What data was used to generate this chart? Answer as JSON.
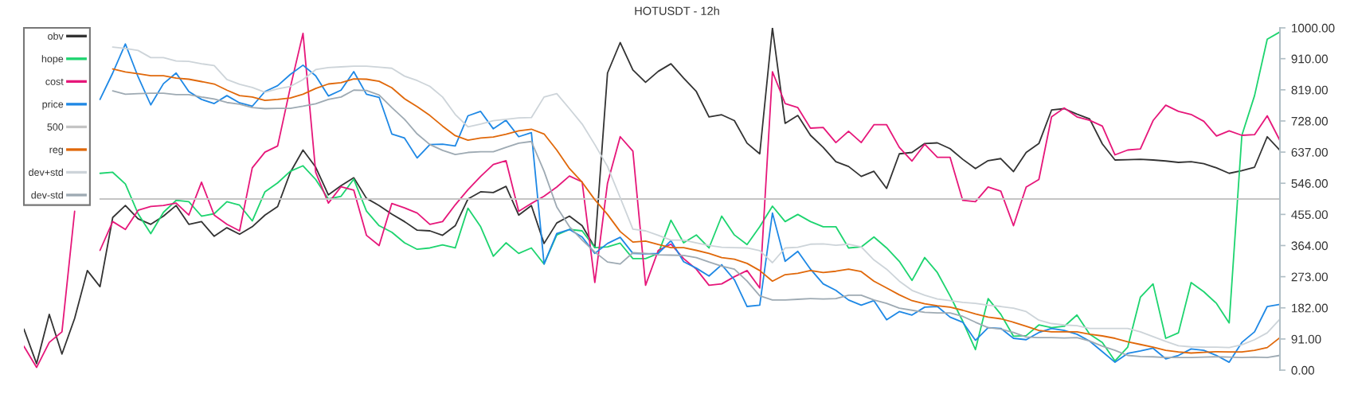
{
  "chart_data": {
    "type": "line",
    "title": "HOTUSDT - 12h",
    "categories": [
      null,
      null,
      null,
      null,
      null,
      null,
      null,
      null,
      null,
      null,
      null,
      null,
      null,
      null,
      null,
      null,
      null,
      null,
      null,
      null,
      null,
      null,
      null,
      null,
      null,
      null,
      null,
      null,
      null,
      null,
      null,
      null,
      null,
      null,
      null,
      null,
      null,
      null,
      null,
      null,
      null,
      null,
      null,
      null,
      null,
      null,
      null,
      null,
      null,
      null,
      null,
      null,
      null,
      null,
      null,
      null,
      null,
      null,
      null,
      null,
      null,
      null,
      null,
      null,
      null,
      null,
      null,
      null,
      null,
      null,
      null,
      null,
      null,
      null,
      null,
      null,
      null,
      null,
      null,
      null,
      null,
      null,
      null,
      null,
      null,
      null,
      null,
      null,
      null,
      null,
      null,
      null,
      null,
      null,
      null,
      null,
      null,
      null,
      null,
      null
    ],
    "series": [
      {
        "name": "obv",
        "color": "#333333",
        "values": [
          120,
          19,
          163,
          47,
          151,
          291,
          244,
          446,
          481,
          442,
          426,
          450,
          481,
          426,
          434,
          391,
          416,
          397,
          419,
          453,
          478,
          578,
          643,
          593,
          512,
          539,
          562,
          502,
          481,
          456,
          434,
          409,
          407,
          394,
          422,
          500,
          521,
          519,
          537,
          453,
          481,
          370,
          430,
          450,
          422,
          358,
          868,
          957,
          877,
          841,
          873,
          895,
          853,
          814,
          740,
          746,
          729,
          663,
          632,
          1000,
          721,
          744,
          686,
          651,
          609,
          595,
          566,
          581,
          531,
          632,
          636,
          662,
          664,
          647,
          616,
          589,
          612,
          618,
          580,
          636,
          662,
          760,
          764,
          748,
          734,
          661,
          614,
          615,
          616,
          614,
          611,
          607,
          609,
          603,
          591,
          575,
          583,
          593,
          682,
          642
        ]
      },
      {
        "name": "hope",
        "color": "#1dd46f",
        "values": [
          null,
          null,
          null,
          null,
          null,
          null,
          575,
          578,
          544,
          457,
          399,
          461,
          496,
          492,
          450,
          457,
          492,
          482,
          436,
          521,
          547,
          581,
          597,
          557,
          500,
          508,
          558,
          465,
          422,
          403,
          372,
          353,
          357,
          366,
          357,
          473,
          419,
          333,
          372,
          341,
          357,
          310,
          395,
          411,
          407,
          358,
          360,
          371,
          326,
          326,
          341,
          438,
          372,
          395,
          357,
          450,
          395,
          367,
          419,
          479,
          434,
          455,
          434,
          419,
          419,
          357,
          360,
          389,
          357,
          318,
          262,
          329,
          285,
          217,
          143,
          60,
          209,
          163,
          99,
          101,
          132,
          124,
          128,
          161,
          105,
          81,
          27,
          67,
          213,
          252,
          93,
          109,
          256,
          229,
          195,
          138,
          686,
          802,
          967,
          988
        ]
      },
      {
        "name": "cost",
        "color": "#e6177a",
        "values": [
          70,
          8,
          81,
          112,
          464,
          null,
          350,
          434,
          411,
          467,
          478,
          481,
          488,
          453,
          549,
          453,
          426,
          407,
          591,
          637,
          655,
          826,
          984,
          578,
          488,
          536,
          526,
          394,
          364,
          487,
          474,
          459,
          426,
          434,
          483,
          527,
          566,
          601,
          612,
          464,
          487,
          508,
          535,
          567,
          550,
          256,
          546,
          682,
          640,
          248,
          350,
          368,
          326,
          295,
          248,
          252,
          273,
          291,
          240,
          872,
          779,
          767,
          707,
          709,
          665,
          698,
          665,
          717,
          717,
          651,
          611,
          660,
          622,
          622,
          496,
          492,
          535,
          523,
          422,
          535,
          557,
          740,
          766,
          740,
          730,
          713,
          629,
          643,
          646,
          729,
          774,
          756,
          747,
          727,
          684,
          699,
          686,
          688,
          743,
          671
        ]
      },
      {
        "name": "price",
        "color": "#1e88e5",
        "values": [
          null,
          null,
          null,
          null,
          null,
          null,
          791,
          868,
          953,
          857,
          775,
          837,
          868,
          814,
          791,
          779,
          802,
          781,
          771,
          814,
          831,
          864,
          891,
          860,
          801,
          818,
          872,
          806,
          797,
          690,
          678,
          620,
          659,
          660,
          655,
          743,
          756,
          705,
          730,
          682,
          694,
          310,
          399,
          411,
          389,
          341,
          370,
          388,
          341,
          340,
          341,
          378,
          317,
          298,
          275,
          308,
          264,
          186,
          190,
          459,
          318,
          347,
          295,
          252,
          233,
          205,
          190,
          203,
          147,
          171,
          161,
          184,
          186,
          155,
          140,
          87,
          124,
          122,
          93,
          89,
          110,
          122,
          116,
          105,
          85,
          54,
          23,
          49,
          56,
          64,
          33,
          43,
          62,
          58,
          43,
          23,
          81,
          112,
          186,
          192
        ]
      },
      {
        "name": "500",
        "color": "#c4c4c4",
        "values": [
          null,
          null,
          null,
          null,
          null,
          null,
          500,
          500,
          500,
          500,
          500,
          500,
          500,
          500,
          500,
          500,
          500,
          500,
          500,
          500,
          500,
          500,
          500,
          500,
          500,
          500,
          500,
          500,
          500,
          500,
          500,
          500,
          500,
          500,
          500,
          500,
          500,
          500,
          500,
          500,
          500,
          500,
          500,
          500,
          500,
          500,
          500,
          500,
          500,
          500,
          500,
          500,
          500,
          500,
          500,
          500,
          500,
          500,
          500,
          500,
          500,
          500,
          500,
          500,
          500,
          500,
          500,
          500,
          500,
          500,
          500,
          500,
          500,
          500,
          500,
          500,
          500,
          500,
          500,
          500,
          500,
          500,
          500,
          500,
          500,
          500,
          500,
          500,
          500,
          500,
          500,
          500,
          500,
          500,
          500,
          500,
          500,
          500,
          500,
          500
        ]
      },
      {
        "name": "reg",
        "color": "#e0680a",
        "values": [
          null,
          null,
          null,
          null,
          null,
          null,
          null,
          880,
          871,
          866,
          860,
          860,
          853,
          850,
          843,
          836,
          818,
          802,
          798,
          788,
          791,
          795,
          806,
          823,
          836,
          840,
          851,
          850,
          844,
          825,
          793,
          770,
          744,
          713,
          685,
          672,
          678,
          681,
          689,
          699,
          704,
          690,
          643,
          589,
          549,
          498,
          455,
          405,
          374,
          377,
          367,
          358,
          358,
          350,
          341,
          329,
          324,
          312,
          291,
          260,
          279,
          283,
          291,
          285,
          289,
          295,
          288,
          260,
          240,
          220,
          203,
          194,
          188,
          184,
          175,
          164,
          155,
          150,
          140,
          128,
          116,
          112,
          112,
          112,
          105,
          100,
          93,
          83,
          75,
          67,
          58,
          53,
          50,
          52,
          54,
          53,
          53,
          58,
          66,
          95
        ]
      },
      {
        "name": "dev+std",
        "color": "#cdd4d9",
        "values": [
          null,
          null,
          null,
          null,
          null,
          null,
          null,
          944,
          940,
          934,
          913,
          913,
          903,
          902,
          895,
          890,
          849,
          835,
          826,
          812,
          822,
          829,
          849,
          878,
          884,
          886,
          888,
          888,
          885,
          882,
          859,
          846,
          829,
          798,
          747,
          711,
          719,
          729,
          733,
          737,
          738,
          798,
          808,
          764,
          719,
          659,
          595,
          504,
          412,
          407,
          394,
          380,
          380,
          372,
          364,
          359,
          358,
          357,
          349,
          314,
          357,
          359,
          368,
          369,
          365,
          368,
          360,
          322,
          295,
          260,
          233,
          219,
          208,
          203,
          198,
          195,
          190,
          186,
          181,
          171,
          146,
          136,
          132,
          130,
          122,
          122,
          122,
          122,
          112,
          98,
          84,
          71,
          68,
          67,
          67,
          66,
          74,
          89,
          109,
          149
        ]
      },
      {
        "name": "dev-std",
        "color": "#9eaab3",
        "values": [
          null,
          null,
          null,
          null,
          null,
          null,
          null,
          816,
          806,
          808,
          809,
          809,
          805,
          805,
          798,
          792,
          782,
          777,
          767,
          764,
          765,
          765,
          771,
          778,
          791,
          798,
          818,
          817,
          804,
          767,
          733,
          690,
          659,
          642,
          630,
          636,
          638,
          638,
          651,
          663,
          668,
          581,
          477,
          419,
          380,
          345,
          316,
          310,
          343,
          341,
          337,
          336,
          335,
          329,
          316,
          304,
          295,
          260,
          217,
          205,
          205,
          207,
          209,
          208,
          209,
          219,
          219,
          205,
          195,
          181,
          175,
          169,
          167,
          167,
          157,
          140,
          124,
          120,
          110,
          97,
          95,
          95,
          94,
          95,
          85,
          70,
          58,
          43,
          40,
          39,
          37,
          37,
          37,
          38,
          39,
          38,
          37,
          38,
          37,
          43
        ]
      }
    ],
    "ylim": [
      0,
      1000
    ],
    "yticks": [
      {
        "value": 0,
        "label": "0.00"
      },
      {
        "value": 91,
        "label": "91.00"
      },
      {
        "value": 182,
        "label": "182.00"
      },
      {
        "value": 273,
        "label": "273.00"
      },
      {
        "value": 364,
        "label": "364.00"
      },
      {
        "value": 455,
        "label": "455.00"
      },
      {
        "value": 546,
        "label": "546.00"
      },
      {
        "value": 637,
        "label": "637.00"
      },
      {
        "value": 728,
        "label": "728.00"
      },
      {
        "value": 819,
        "label": "819.00"
      },
      {
        "value": 910,
        "label": "910.00"
      },
      {
        "value": 1000,
        "label": "1000.00"
      }
    ],
    "tick_labels": "y",
    "legend": "top left",
    "grid": false,
    "marker": "none",
    "line_style": "solid"
  }
}
